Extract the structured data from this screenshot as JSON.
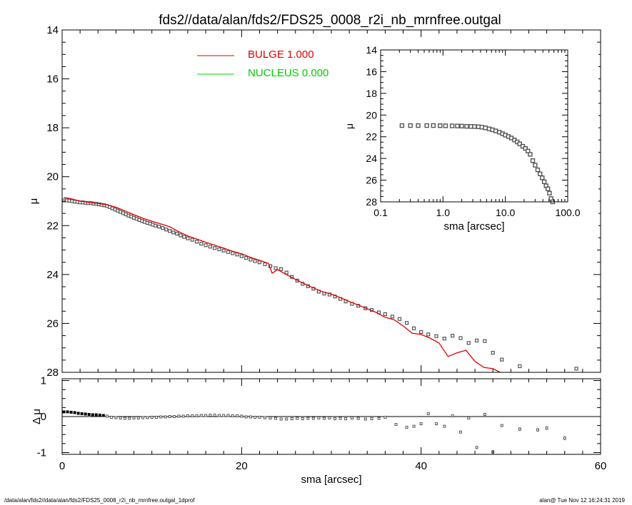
{
  "title": "fds2//data/alan/fds2/FDS25_0008_r2i_nb_mrnfree.outgal",
  "footer_left": "/data/alan/fds2//data/alan/fds2/FDS25_0008_r2i_nb_mrnfree.outgal_1dprof",
  "footer_right": "alan@  Tue Nov 12 16:24:31 2019",
  "colors": {
    "bulge": "#e00000",
    "nucleus": "#00d000",
    "points": "#555555"
  },
  "chart_data": [
    {
      "panel": "main",
      "type": "scatter",
      "xlabel": "sma [arcsec]",
      "ylabel": "μ",
      "xlim": [
        0,
        60
      ],
      "ylim": [
        28,
        14
      ],
      "y_inverted": true,
      "xticks": [
        "0",
        "20",
        "40",
        "60"
      ],
      "yticks": [
        "14",
        "16",
        "18",
        "20",
        "22",
        "24",
        "26",
        "28"
      ],
      "legend": {
        "placement": "top-center",
        "entries": [
          {
            "label": "BULGE  1.000",
            "color": "#e00000"
          },
          {
            "label": "NUCLEUS  0.000",
            "color": "#00d000"
          }
        ]
      },
      "series": [
        {
          "name": "BULGE  1.000",
          "kind": "line",
          "color": "#e00000",
          "x": [
            0.2,
            1.0,
            2.0,
            3.0,
            4.0,
            5.0,
            6.0,
            7.0,
            8.0,
            9.0,
            10.0,
            11.0,
            12.0,
            13.0,
            14.0,
            15.0,
            16.0,
            17.0,
            18.0,
            19.0,
            20.0,
            21.0,
            22.0,
            23.0,
            23.4,
            24.0,
            25.0,
            26.0,
            27.0,
            28.0,
            29.0,
            30.0,
            31.0,
            32.0,
            33.0,
            34.0,
            35.0,
            36.0,
            37.0,
            38.0,
            39.0,
            40.0,
            41.0,
            42.0,
            43.0,
            44.0,
            45.0,
            46.0,
            47.0,
            48.0,
            48.8
          ],
          "y": [
            20.85,
            20.9,
            21.0,
            21.05,
            21.1,
            21.15,
            21.25,
            21.4,
            21.55,
            21.7,
            21.82,
            21.93,
            22.05,
            22.25,
            22.42,
            22.55,
            22.68,
            22.8,
            22.92,
            23.05,
            23.15,
            23.3,
            23.42,
            23.55,
            23.95,
            23.8,
            24.0,
            24.2,
            24.38,
            24.55,
            24.7,
            24.8,
            24.95,
            25.1,
            25.25,
            25.4,
            25.55,
            25.75,
            25.85,
            26.1,
            26.4,
            26.45,
            26.6,
            26.8,
            27.35,
            27.2,
            27.1,
            27.55,
            27.8,
            27.85,
            28.0
          ]
        },
        {
          "name": "data",
          "kind": "points",
          "color": "#555555",
          "x": [
            0.2,
            0.5,
            0.8,
            1.1,
            1.4,
            1.7,
            2.0,
            2.3,
            2.6,
            2.9,
            3.2,
            3.5,
            3.8,
            4.1,
            4.4,
            4.7,
            5.0,
            5.3,
            5.6,
            5.9,
            6.2,
            6.5,
            6.8,
            7.1,
            7.4,
            7.7,
            8.0,
            8.3,
            8.6,
            8.9,
            9.2,
            9.5,
            9.8,
            10.1,
            10.4,
            10.8,
            11.2,
            11.6,
            12.0,
            12.4,
            12.8,
            13.2,
            13.6,
            14.0,
            14.5,
            15.0,
            15.5,
            16.0,
            16.5,
            17.0,
            17.5,
            18.0,
            18.5,
            19.0,
            19.5,
            20.0,
            20.5,
            21.0,
            21.5,
            22.0,
            22.6,
            23.2,
            23.8,
            24.4,
            25.0,
            25.6,
            26.2,
            26.8,
            27.4,
            28.0,
            28.6,
            29.2,
            29.8,
            30.4,
            31.0,
            31.6,
            32.3,
            33.0,
            33.8,
            34.5,
            35.3,
            36.0,
            36.8,
            37.6,
            38.4,
            39.2,
            40.0,
            40.8,
            41.7,
            42.6,
            43.5,
            44.4,
            45.3,
            46.2,
            47.1,
            48.0,
            49.0,
            51.0,
            57.3
          ],
          "y": [
            20.97,
            20.97,
            20.98,
            21.0,
            21.02,
            21.03,
            21.05,
            21.05,
            21.07,
            21.08,
            21.08,
            21.1,
            21.11,
            21.13,
            21.15,
            21.17,
            21.2,
            21.24,
            21.29,
            21.34,
            21.39,
            21.44,
            21.49,
            21.54,
            21.59,
            21.63,
            21.68,
            21.72,
            21.77,
            21.81,
            21.85,
            21.89,
            21.92,
            21.96,
            22.0,
            22.04,
            22.1,
            22.16,
            22.22,
            22.28,
            22.33,
            22.4,
            22.46,
            22.52,
            22.58,
            22.66,
            22.74,
            22.8,
            22.86,
            22.92,
            22.97,
            23.02,
            23.08,
            23.13,
            23.18,
            23.25,
            23.32,
            23.39,
            23.45,
            23.5,
            23.58,
            23.66,
            23.74,
            23.78,
            23.92,
            24.1,
            24.25,
            24.38,
            24.48,
            24.58,
            24.7,
            24.78,
            24.82,
            24.9,
            25.0,
            25.1,
            25.2,
            25.28,
            25.38,
            25.45,
            25.55,
            25.62,
            25.72,
            25.82,
            25.98,
            26.2,
            26.35,
            26.45,
            26.52,
            26.62,
            26.5,
            26.6,
            26.8,
            26.7,
            26.72,
            27.2,
            27.48,
            27.75,
            27.85
          ]
        }
      ]
    },
    {
      "panel": "inset",
      "type": "scatter",
      "xlabel": "sma [arcsec]",
      "ylabel": "μ",
      "xscale": "log",
      "xlim": [
        0.1,
        100.0
      ],
      "ylim": [
        28,
        14
      ],
      "y_inverted": true,
      "xticks": [
        "0.1",
        "1.0",
        "10.0",
        "100.0"
      ],
      "yticks": [
        "14",
        "16",
        "18",
        "20",
        "22",
        "24",
        "26",
        "28"
      ],
      "series": [
        {
          "name": "data",
          "kind": "points",
          "color": "#555555",
          "x": [
            0.22,
            0.3,
            0.4,
            0.55,
            0.7,
            0.9,
            1.1,
            1.4,
            1.7,
            2.0,
            2.4,
            2.8,
            3.2,
            3.7,
            4.2,
            4.8,
            5.5,
            6.2,
            7.0,
            8.0,
            9.0,
            10.0,
            11.2,
            12.5,
            14.0,
            15.5,
            17.0,
            19.0,
            21.0,
            23.0,
            25.0,
            27.5,
            30.0,
            33.0,
            36.0,
            39.0,
            42.0,
            45.0,
            48.0,
            51.0,
            54.0,
            57.3
          ],
          "y": [
            20.97,
            20.97,
            20.97,
            20.97,
            20.97,
            20.98,
            20.99,
            21.0,
            21.01,
            21.02,
            21.04,
            21.05,
            21.06,
            21.08,
            21.12,
            21.18,
            21.27,
            21.36,
            21.46,
            21.58,
            21.72,
            21.85,
            21.98,
            22.12,
            22.3,
            22.48,
            22.66,
            22.88,
            23.08,
            23.32,
            23.62,
            24.2,
            24.62,
            25.05,
            25.42,
            25.78,
            26.15,
            26.52,
            26.8,
            27.2,
            27.7,
            28.0
          ]
        }
      ]
    },
    {
      "panel": "residual",
      "type": "scatter",
      "xlabel": "sma [arcsec]",
      "ylabel": "Δ μ",
      "xlim": [
        0,
        60
      ],
      "ylim": [
        -1.05,
        1.05
      ],
      "xticks": [
        "0",
        "20",
        "40",
        "60"
      ],
      "yticks": [
        "1",
        "0",
        "-1"
      ],
      "reference_line": 0,
      "series": [
        {
          "name": "residual",
          "kind": "points_with_errors",
          "color": "#555555",
          "x": [
            0.2,
            0.6,
            1.0,
            1.4,
            1.8,
            2.2,
            2.6,
            3.0,
            3.4,
            3.8,
            4.2,
            4.6,
            5.0,
            5.5,
            6.0,
            6.5,
            7.0,
            7.5,
            8.0,
            8.5,
            9.0,
            9.5,
            10.0,
            10.5,
            11.0,
            11.5,
            12.0,
            12.5,
            13.0,
            13.5,
            14.0,
            14.5,
            15.0,
            15.5,
            16.0,
            16.5,
            17.0,
            17.5,
            18.0,
            18.5,
            19.0,
            19.5,
            20.0,
            20.5,
            21.0,
            21.5,
            22.0,
            22.6,
            23.2,
            23.8,
            24.4,
            25.0,
            25.6,
            26.2,
            26.8,
            27.4,
            28.0,
            28.6,
            29.2,
            29.8,
            30.4,
            31.0,
            31.6,
            32.3,
            33.0,
            33.8,
            34.5,
            35.3,
            36.0,
            37.2,
            38.4,
            39.2,
            40.0,
            40.8,
            41.7,
            42.6,
            43.5,
            44.4,
            45.3,
            46.2,
            47.1,
            48.0,
            49.0,
            51.0,
            53.0,
            54.0,
            56.0
          ],
          "y": [
            0.13,
            0.13,
            0.12,
            0.11,
            0.09,
            0.08,
            0.07,
            0.06,
            0.05,
            0.05,
            0.04,
            0.03,
            0.01,
            -0.02,
            -0.03,
            -0.04,
            -0.05,
            -0.05,
            -0.04,
            -0.04,
            -0.03,
            -0.03,
            -0.02,
            -0.02,
            -0.01,
            -0.01,
            0.0,
            0.0,
            0.01,
            0.01,
            0.02,
            0.02,
            0.02,
            0.03,
            0.03,
            0.04,
            0.04,
            0.03,
            0.03,
            0.03,
            0.02,
            0.02,
            0.01,
            -0.01,
            -0.01,
            -0.02,
            -0.02,
            -0.03,
            -0.04,
            -0.05,
            -0.07,
            -0.07,
            -0.06,
            -0.05,
            -0.06,
            -0.05,
            -0.05,
            -0.04,
            -0.05,
            -0.04,
            -0.06,
            -0.05,
            -0.06,
            -0.04,
            -0.05,
            -0.07,
            -0.06,
            -0.05,
            -0.02,
            -0.22,
            -0.3,
            -0.27,
            -0.2,
            0.08,
            -0.2,
            -0.27,
            0.02,
            -0.43,
            -0.04,
            -0.86,
            0.06,
            -0.98,
            -0.25,
            -0.35,
            -0.37,
            -0.32,
            -0.6
          ],
          "err": [
            0.01,
            0.01,
            0.01,
            0.01,
            0.01,
            0.01,
            0.01,
            0.01,
            0.01,
            0.01,
            0.01,
            0.01,
            0.01,
            0.01,
            0.01,
            0.01,
            0.01,
            0.01,
            0.01,
            0.01,
            0.01,
            0.01,
            0.01,
            0.01,
            0.01,
            0.01,
            0.01,
            0.01,
            0.01,
            0.01,
            0.01,
            0.01,
            0.01,
            0.01,
            0.01,
            0.01,
            0.01,
            0.01,
            0.01,
            0.01,
            0.01,
            0.01,
            0.01,
            0.01,
            0.01,
            0.01,
            0.01,
            0.01,
            0.01,
            0.01,
            0.01,
            0.01,
            0.01,
            0.01,
            0.01,
            0.01,
            0.01,
            0.01,
            0.01,
            0.01,
            0.01,
            0.01,
            0.01,
            0.01,
            0.01,
            0.01,
            0.01,
            0.01,
            0.01,
            0.01,
            0.01,
            0.01,
            0.01,
            0.01,
            0.01,
            0.01,
            0.01,
            0.03,
            0.01,
            0.04,
            0.02,
            0.05,
            0.04,
            0.05,
            0.05,
            0.05,
            0.06
          ]
        }
      ]
    }
  ]
}
